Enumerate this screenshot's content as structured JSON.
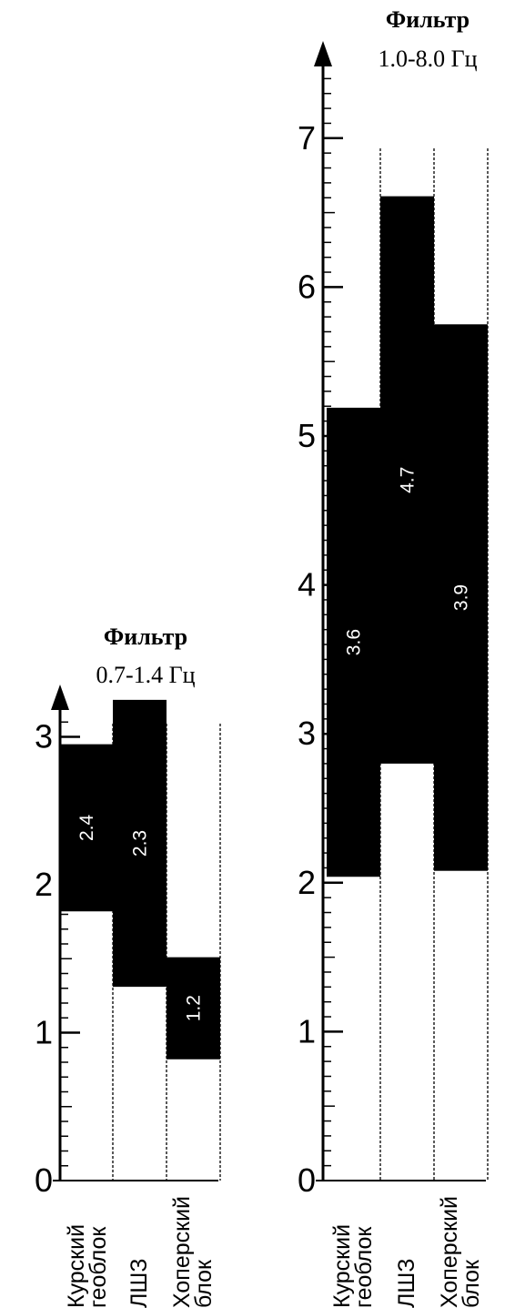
{
  "chart_data": [
    {
      "type": "bar",
      "title_line1": "Фильтр",
      "title_line2": "0.7-1.4 Гц",
      "ylim": [
        0,
        3.5
      ],
      "yticks": [
        "0",
        "1",
        "2",
        "3"
      ],
      "categories": [
        [
          "Курский",
          "геоблок"
        ],
        [
          "ЛШЗ"
        ],
        [
          "Хоперский",
          "блок"
        ]
      ],
      "series": [
        {
          "low": [
            1.82,
            1.31,
            0.82
          ],
          "high": [
            2.95,
            3.25,
            1.51
          ],
          "labels": [
            "2.4",
            "2.3",
            "1.2"
          ]
        }
      ]
    },
    {
      "type": "bar",
      "title_line1": "Фильтр",
      "title_line2": "1.0-8.0 Гц",
      "ylim": [
        0,
        8
      ],
      "yticks": [
        "0",
        "1",
        "2",
        "3",
        "4",
        "5",
        "6",
        "7"
      ],
      "categories": [
        [
          "Курский",
          "геоблок"
        ],
        [
          "ЛШЗ"
        ],
        [
          "Хоперский",
          "блок"
        ]
      ],
      "series": [
        {
          "low": [
            2.04,
            2.8,
            2.08
          ],
          "high": [
            5.19,
            6.61,
            5.75
          ],
          "labels": [
            "3.6",
            "4.7",
            "3.9"
          ]
        }
      ]
    }
  ]
}
